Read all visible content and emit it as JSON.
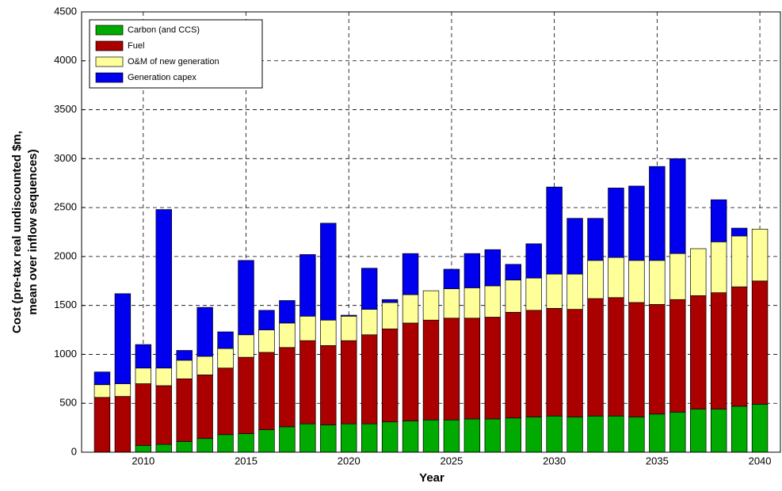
{
  "chart_data": {
    "type": "stacked-bar",
    "ylabel": [
      "Cost (pre-tax real undiscounted $m,",
      "mean over inflow sequences)"
    ],
    "xlabel": "Year",
    "x": [
      2008,
      2009,
      2010,
      2011,
      2012,
      2013,
      2014,
      2015,
      2016,
      2017,
      2018,
      2019,
      2020,
      2021,
      2022,
      2023,
      2024,
      2025,
      2026,
      2027,
      2028,
      2029,
      2030,
      2031,
      2032,
      2033,
      2034,
      2035,
      2036,
      2037,
      2038,
      2039,
      2040
    ],
    "series": [
      {
        "name": "Carbon (and CCS)",
        "color": "#00aa00",
        "values": [
          0,
          0,
          70,
          80,
          110,
          140,
          180,
          190,
          230,
          260,
          290,
          280,
          290,
          290,
          310,
          320,
          330,
          330,
          340,
          340,
          350,
          360,
          370,
          360,
          370,
          370,
          360,
          390,
          410,
          440,
          440,
          470,
          490
        ]
      },
      {
        "name": "Fuel",
        "color": "#aa0000",
        "values": [
          560,
          570,
          630,
          600,
          640,
          650,
          680,
          780,
          790,
          810,
          850,
          810,
          850,
          910,
          950,
          1000,
          1020,
          1040,
          1030,
          1040,
          1080,
          1090,
          1100,
          1100,
          1200,
          1210,
          1170,
          1120,
          1150,
          1160,
          1190,
          1220,
          1260
        ]
      },
      {
        "name": "O&M of new generation",
        "color": "#ffff99",
        "values": [
          130,
          130,
          160,
          180,
          190,
          190,
          200,
          230,
          230,
          250,
          250,
          260,
          250,
          260,
          270,
          290,
          300,
          300,
          310,
          320,
          330,
          330,
          350,
          360,
          390,
          410,
          430,
          450,
          470,
          480,
          520,
          520,
          530
        ]
      },
      {
        "name": "Generation capex",
        "color": "#0000ee",
        "values": [
          130,
          920,
          240,
          1620,
          100,
          500,
          170,
          760,
          200,
          230,
          630,
          990,
          10,
          420,
          30,
          420,
          0,
          200,
          350,
          370,
          160,
          350,
          890,
          570,
          430,
          710,
          760,
          960,
          970,
          0,
          430,
          80,
          0
        ]
      }
    ],
    "xlim": [
      2007,
      2041
    ],
    "xticks": [
      2010,
      2015,
      2020,
      2025,
      2030,
      2035,
      2040
    ],
    "ylim": [
      0,
      4500
    ],
    "yticks": [
      0,
      500,
      1000,
      1500,
      2000,
      2500,
      3000,
      3500,
      4000,
      4500
    ],
    "grid": true,
    "legend": "upper left"
  }
}
